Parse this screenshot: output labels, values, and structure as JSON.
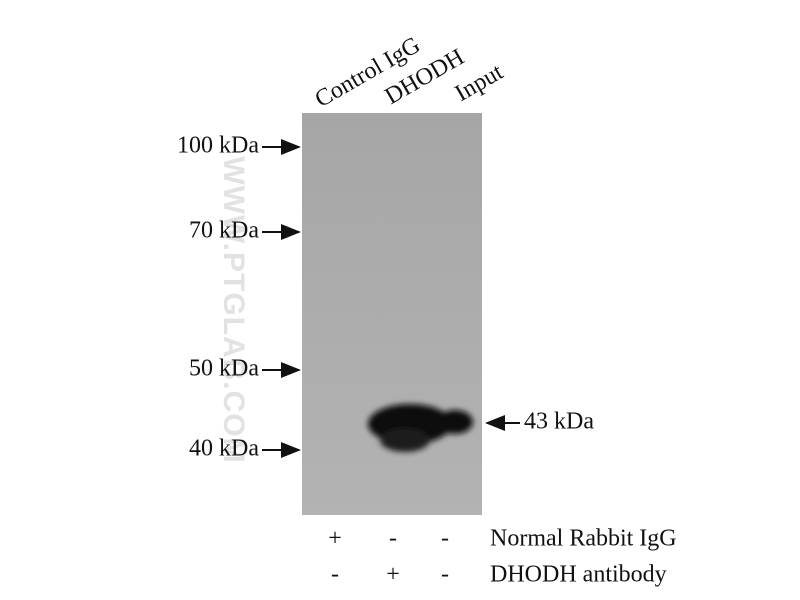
{
  "lanes": [
    "Control IgG",
    "DHODH",
    "Input"
  ],
  "markers": [
    "100 kDa",
    "70 kDa",
    "50 kDa",
    "40 kDa"
  ],
  "band_label": "43 kDa",
  "conditions": [
    {
      "name": "Normal Rabbit IgG",
      "signs": [
        "+",
        "-",
        "-"
      ]
    },
    {
      "name": "DHODH antibody",
      "signs": [
        "-",
        "+",
        "-"
      ]
    }
  ],
  "watermark": "WWW.PTGLAB.COM"
}
